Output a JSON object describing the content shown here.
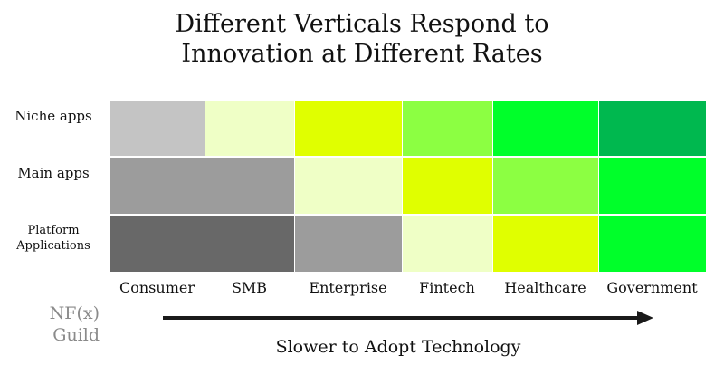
{
  "title": [
    "Different Verticals Respond to",
    "Innovation at Different Rates"
  ],
  "chart_data": {
    "type": "heatmap",
    "title": "Different Verticals Respond to Innovation at Different Rates",
    "rows": [
      "Niche apps",
      "Main apps",
      "Platform Applications"
    ],
    "row_label_lines": [
      [
        "Niche apps"
      ],
      [
        "Main apps"
      ],
      [
        "Platform",
        "Applications"
      ]
    ],
    "columns": [
      "Consumer",
      "SMB",
      "Enterprise",
      "Fintech",
      "Healthcare",
      "Government"
    ],
    "cell_colors": [
      [
        "#c4c4c4",
        "#efffc6",
        "#e0ff00",
        "#8cff42",
        "#00ff2a",
        "#00b84f"
      ],
      [
        "#9c9c9c",
        "#9c9c9c",
        "#efffc6",
        "#e0ff00",
        "#8cff42",
        "#00ff2a"
      ],
      [
        "#686868",
        "#686868",
        "#9c9c9c",
        "#efffc6",
        "#e0ff00",
        "#00ff2a"
      ]
    ],
    "xlabel": "Slower to Adopt Technology",
    "grid": false,
    "legend": "none"
  },
  "logo": [
    "NF(x)",
    "Guild"
  ],
  "colors": {
    "arrow": "#1a1a1a",
    "logo": "#8a8a8a"
  }
}
